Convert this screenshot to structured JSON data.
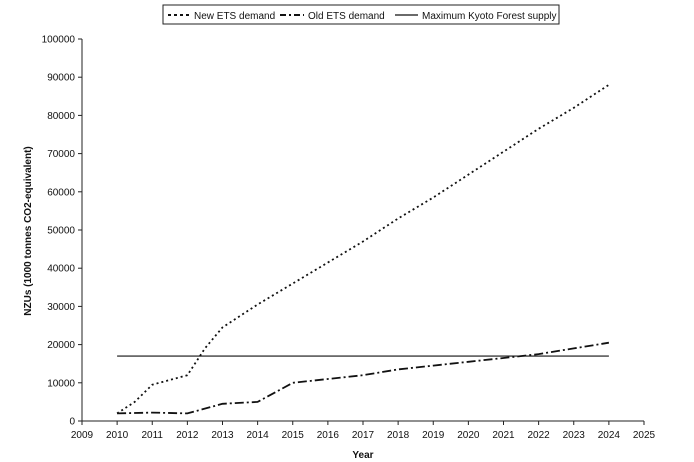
{
  "chart_data": {
    "type": "line",
    "xlabel": "Year",
    "ylabel": "NZUs (1000 tonnes CO2-equivalent)",
    "xlim": [
      2009,
      2025
    ],
    "ylim": [
      0,
      100000
    ],
    "x_ticks": [
      "2009",
      "2010",
      "2011",
      "2012",
      "2013",
      "2014",
      "2015",
      "2016",
      "2017",
      "2018",
      "2019",
      "2020",
      "2021",
      "2022",
      "2023",
      "2024",
      "2025"
    ],
    "y_ticks": [
      "0",
      "10000",
      "20000",
      "30000",
      "40000",
      "50000",
      "60000",
      "70000",
      "80000",
      "90000",
      "100000"
    ],
    "grid": false,
    "legend_position": "top",
    "series": [
      {
        "name": "New ETS demand",
        "style": "dotted",
        "color": "#111111",
        "x": [
          2010,
          2010.5,
          2011,
          2012,
          2012.5,
          2013,
          2014,
          2015,
          2016,
          2017,
          2018,
          2019,
          2020,
          2021,
          2022,
          2023,
          2024
        ],
        "y": [
          2000,
          5000,
          9500,
          12000,
          19000,
          24500,
          30500,
          36000,
          41500,
          47000,
          53000,
          58500,
          64500,
          70500,
          76500,
          82000,
          88000
        ]
      },
      {
        "name": "Old ETS demand",
        "style": "dashdot",
        "color": "#111111",
        "x": [
          2010,
          2011,
          2012,
          2013,
          2014,
          2015,
          2016,
          2017,
          2018,
          2019,
          2020,
          2021,
          2022,
          2023,
          2024
        ],
        "y": [
          2000,
          2200,
          2000,
          4500,
          5000,
          10000,
          11000,
          12000,
          13500,
          14500,
          15500,
          16500,
          17500,
          19000,
          20500
        ]
      },
      {
        "name": "Maximum Kyoto Forest supply",
        "style": "solid",
        "color": "#111111",
        "x": [
          2010,
          2024
        ],
        "y": [
          17000,
          17000
        ]
      }
    ]
  }
}
